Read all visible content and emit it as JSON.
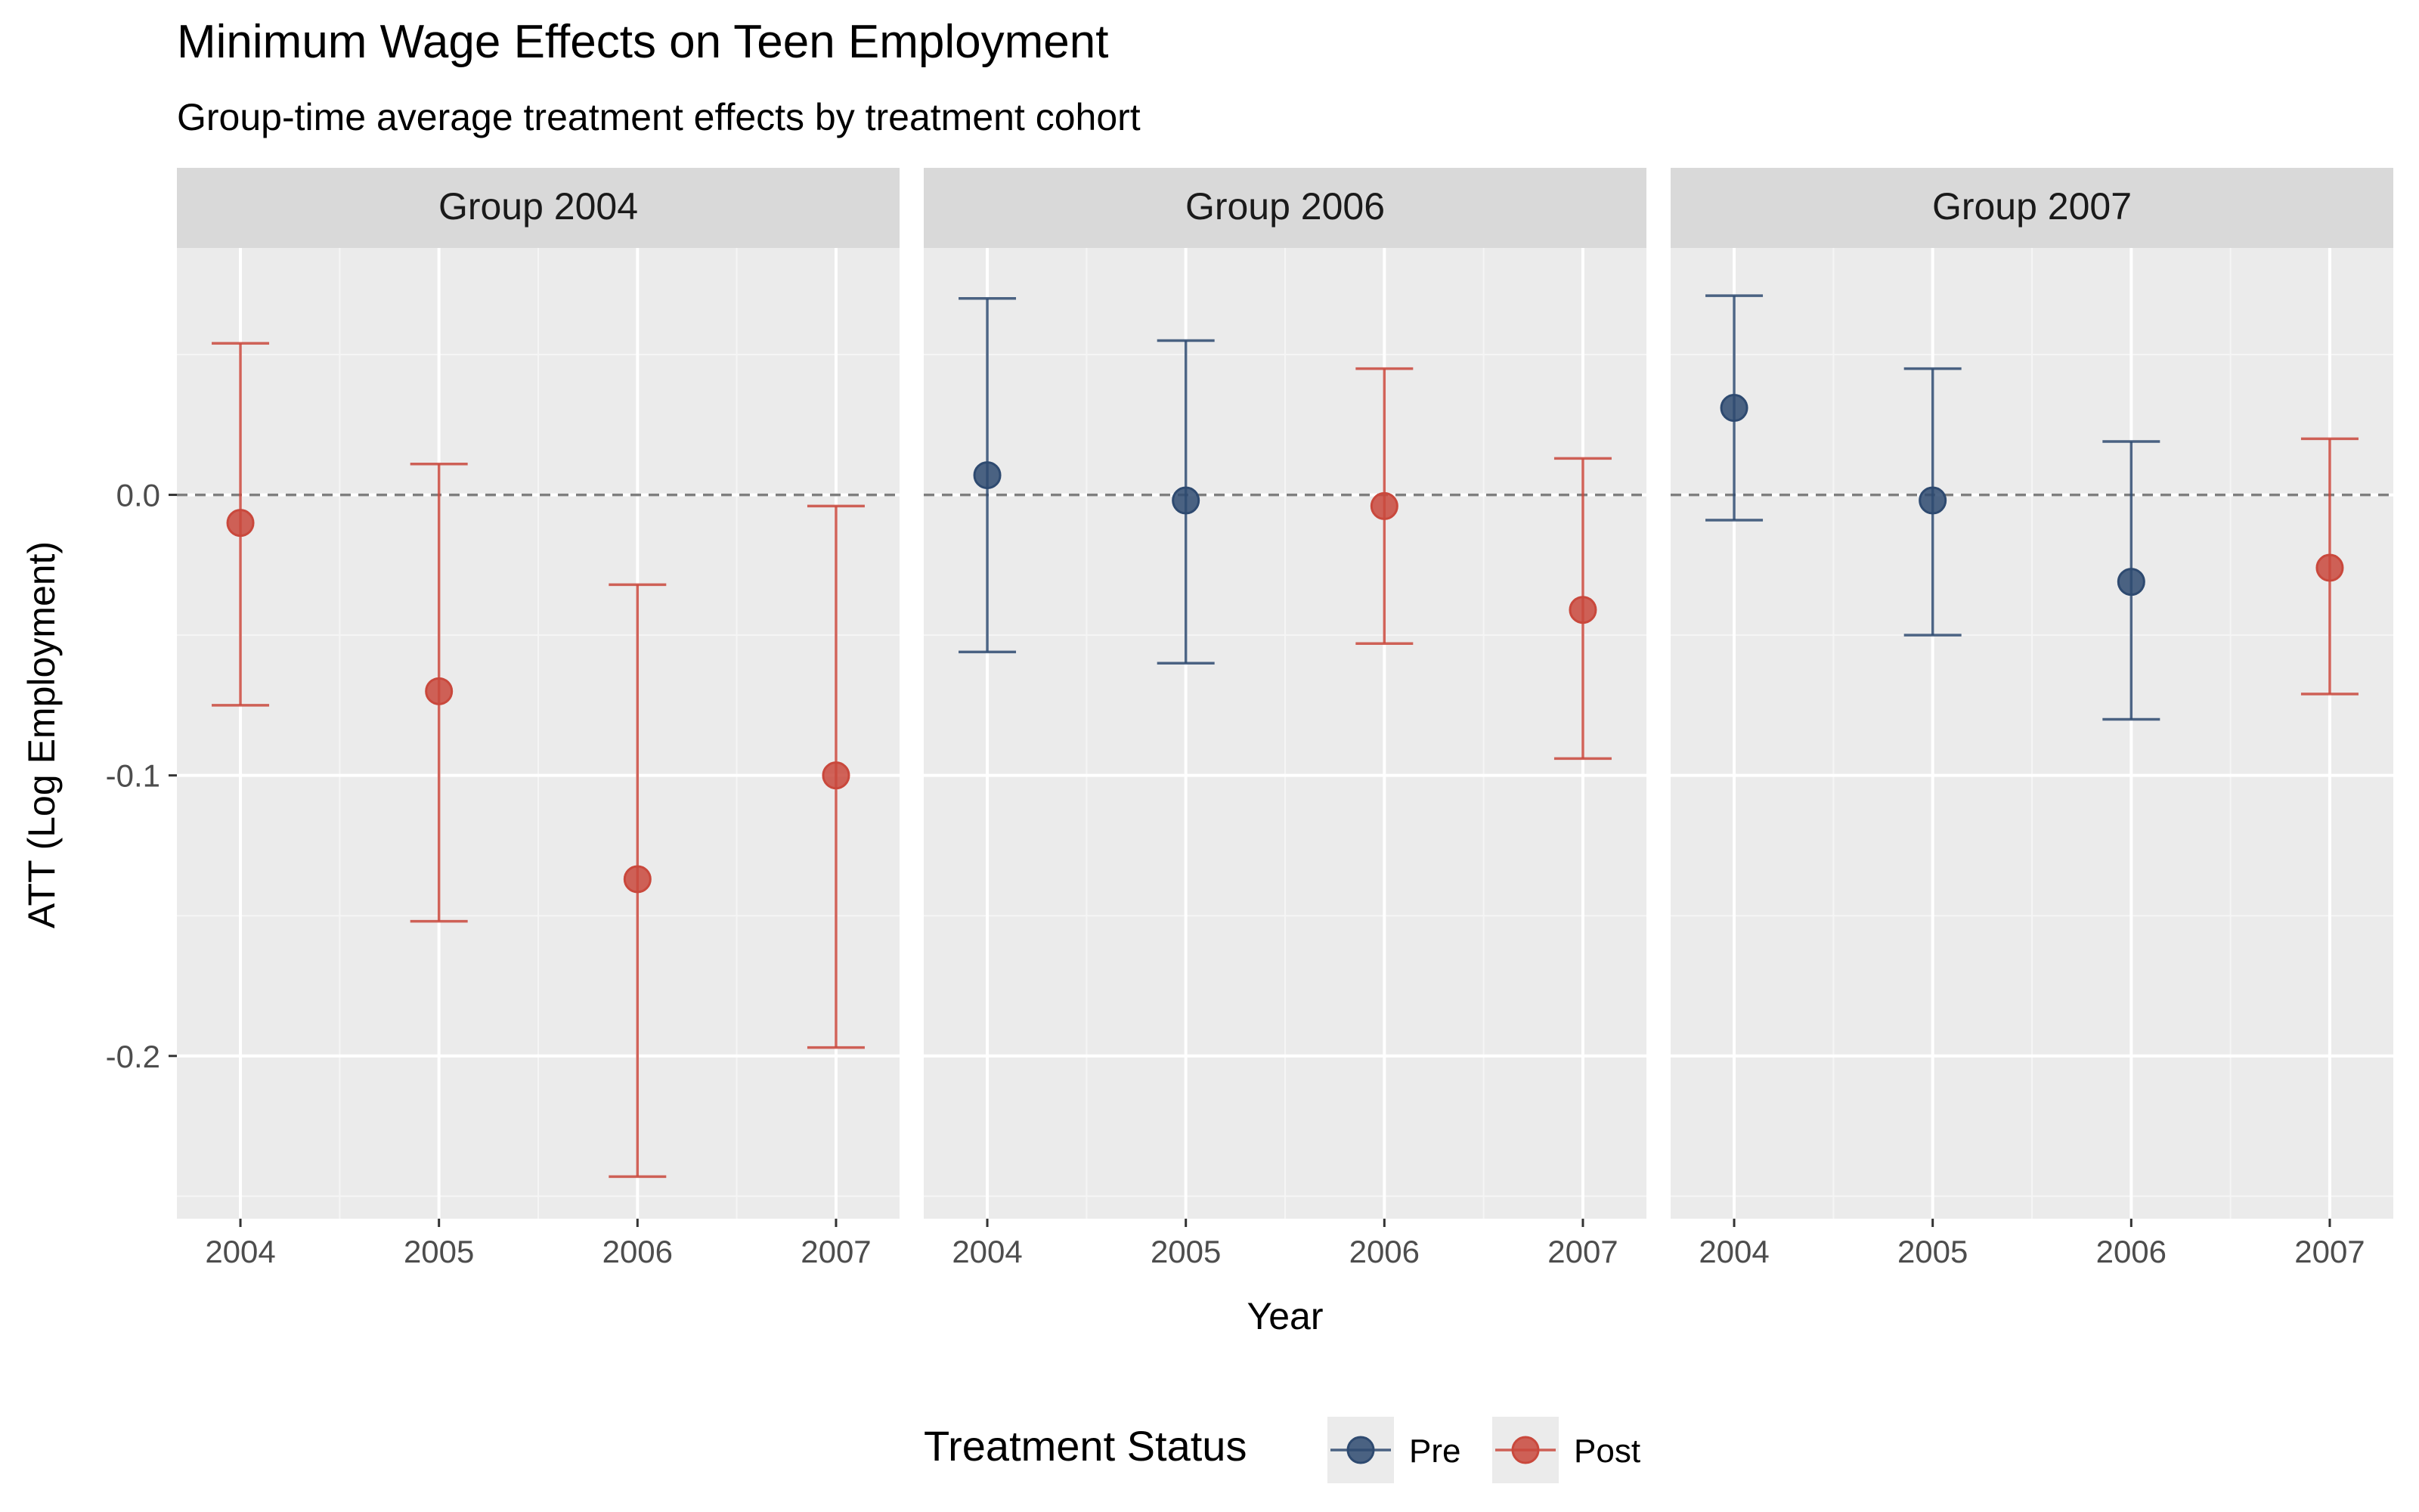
{
  "chart_data": {
    "type": "scatter",
    "subtype": "point-errorbar-faceted",
    "title": "Minimum Wage Effects on Teen Employment",
    "subtitle": "Group-time average treatment effects by treatment cohort",
    "xlabel": "Year",
    "ylabel": "ATT (Log Employment)",
    "x_ticks": [
      "2004",
      "2005",
      "2006",
      "2007"
    ],
    "y_ticks": [
      {
        "value": 0.0,
        "label": "0.0"
      },
      {
        "value": -0.1,
        "label": "-0.1"
      },
      {
        "value": -0.2,
        "label": "-0.2"
      }
    ],
    "ylim": [
      -0.258,
      0.088
    ],
    "xlim": [
      2003.68,
      2007.32
    ],
    "grid": true,
    "reference_line": 0,
    "legend": {
      "title": "Treatment Status",
      "position": "bottom",
      "entries": [
        {
          "label": "Pre",
          "color": "#2E4A70"
        },
        {
          "label": "Post",
          "color": "#C9483C"
        }
      ]
    },
    "facets": [
      {
        "label": "Group 2004",
        "points": [
          {
            "x": 2004,
            "y": -0.01,
            "lower": -0.075,
            "upper": 0.054,
            "status": "Post"
          },
          {
            "x": 2005,
            "y": -0.07,
            "lower": -0.152,
            "upper": 0.011,
            "status": "Post"
          },
          {
            "x": 2006,
            "y": -0.137,
            "lower": -0.243,
            "upper": -0.032,
            "status": "Post"
          },
          {
            "x": 2007,
            "y": -0.1,
            "lower": -0.197,
            "upper": -0.004,
            "status": "Post"
          }
        ]
      },
      {
        "label": "Group 2006",
        "points": [
          {
            "x": 2004,
            "y": 0.007,
            "lower": -0.056,
            "upper": 0.07,
            "status": "Pre"
          },
          {
            "x": 2005,
            "y": -0.002,
            "lower": -0.06,
            "upper": 0.055,
            "status": "Pre"
          },
          {
            "x": 2006,
            "y": -0.004,
            "lower": -0.053,
            "upper": 0.045,
            "status": "Post"
          },
          {
            "x": 2007,
            "y": -0.041,
            "lower": -0.094,
            "upper": 0.013,
            "status": "Post"
          }
        ]
      },
      {
        "label": "Group 2007",
        "points": [
          {
            "x": 2004,
            "y": 0.031,
            "lower": -0.009,
            "upper": 0.071,
            "status": "Pre"
          },
          {
            "x": 2005,
            "y": -0.002,
            "lower": -0.05,
            "upper": 0.045,
            "status": "Pre"
          },
          {
            "x": 2006,
            "y": -0.031,
            "lower": -0.08,
            "upper": 0.019,
            "status": "Pre"
          },
          {
            "x": 2007,
            "y": -0.026,
            "lower": -0.071,
            "upper": 0.02,
            "status": "Post"
          }
        ]
      }
    ]
  }
}
